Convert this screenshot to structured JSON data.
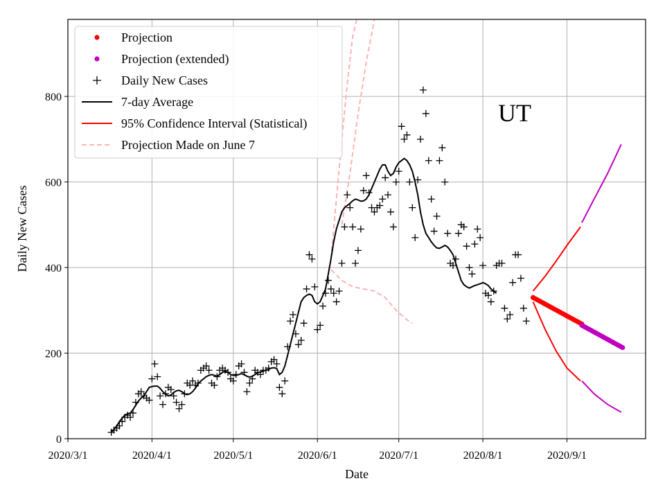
{
  "chart_data": {
    "type": "line",
    "title": "",
    "annotation": "UT",
    "xlabel": "Date",
    "ylabel": "Daily New Cases",
    "xlim_days": [
      0,
      213
    ],
    "ylim": [
      0,
      980
    ],
    "grid": true,
    "legend_position": "top-left",
    "x_ticks": [
      {
        "label": "2020/3/1",
        "day": 0
      },
      {
        "label": "2020/4/1",
        "day": 31
      },
      {
        "label": "2020/5/1",
        "day": 61
      },
      {
        "label": "2020/6/1",
        "day": 92
      },
      {
        "label": "2020/7/1",
        "day": 122
      },
      {
        "label": "2020/8/1",
        "day": 153
      },
      {
        "label": "2020/9/1",
        "day": 184
      }
    ],
    "y_ticks": [
      0,
      200,
      400,
      600,
      800
    ],
    "legend": [
      {
        "label": "Projection",
        "kind": "dot",
        "color": "#ff0000"
      },
      {
        "label": "Projection (extended)",
        "kind": "dot",
        "color": "#bf00bf"
      },
      {
        "label": "Daily New Cases",
        "kind": "plus",
        "color": "#000000"
      },
      {
        "label": "7-day Average",
        "kind": "line",
        "color": "#000000"
      },
      {
        "label": "95% Confidence Interval (Statistical)",
        "kind": "line",
        "color": "#ff0000"
      },
      {
        "label": "Projection Made on June 7",
        "kind": "dashed",
        "color": "#ffb3b3"
      }
    ],
    "daily_new_cases": {
      "start_day": 16,
      "values": [
        15,
        20,
        25,
        30,
        40,
        50,
        55,
        50,
        60,
        85,
        105,
        110,
        100,
        95,
        90,
        140,
        175,
        145,
        100,
        80,
        105,
        120,
        115,
        100,
        85,
        70,
        80,
        105,
        130,
        125,
        135,
        125,
        130,
        160,
        165,
        170,
        160,
        130,
        125,
        145,
        160,
        165,
        160,
        155,
        140,
        135,
        150,
        170,
        175,
        155,
        110,
        130,
        140,
        160,
        155,
        150,
        160,
        160,
        165,
        180,
        185,
        175,
        120,
        105,
        135,
        215,
        275,
        290,
        245,
        220,
        230,
        270,
        350,
        430,
        420,
        355,
        255,
        265,
        310,
        340,
        370,
        350,
        340,
        320,
        345,
        410,
        495,
        570,
        540,
        495,
        410,
        440,
        490,
        580,
        615,
        575,
        540,
        530,
        540,
        545,
        560,
        610,
        570,
        530,
        495,
        600,
        625,
        730,
        700,
        710,
        600,
        540,
        470,
        605,
        700,
        815,
        760,
        650,
        560,
        485,
        520,
        650,
        680,
        600,
        480,
        410,
        405,
        420,
        480,
        500,
        495,
        450,
        400,
        385,
        455,
        490,
        470,
        405,
        340,
        335,
        320,
        345,
        405,
        410,
        410,
        305,
        280,
        290,
        365,
        430,
        430,
        375,
        305,
        275
      ]
    },
    "seven_day_average": {
      "start_day": 16,
      "values": [
        15,
        22,
        30,
        40,
        48,
        55,
        58,
        60,
        68,
        78,
        88,
        95,
        100,
        110,
        120,
        122,
        123,
        123,
        118,
        110,
        104,
        100,
        102,
        108,
        112,
        113,
        110,
        105,
        103,
        105,
        110,
        118,
        128,
        135,
        140,
        145,
        148,
        150,
        148,
        146,
        150,
        155,
        158,
        155,
        150,
        148,
        148,
        150,
        152,
        150,
        146,
        144,
        146,
        150,
        154,
        156,
        158,
        160,
        162,
        165,
        166,
        164,
        150,
        155,
        170,
        195,
        220,
        245,
        270,
        295,
        320,
        330,
        335,
        338,
        335,
        320,
        315,
        320,
        335,
        350,
        385,
        420,
        460,
        490,
        510,
        530,
        540,
        545,
        550,
        556,
        560,
        558,
        555,
        556,
        560,
        570,
        585,
        600,
        615,
        630,
        640,
        640,
        625,
        615,
        620,
        635,
        645,
        650,
        655,
        650,
        640,
        625,
        600,
        570,
        530,
        500,
        480,
        470,
        460,
        452,
        446,
        445,
        448,
        452,
        448,
        440,
        430,
        410,
        390,
        370,
        360,
        355,
        352,
        355,
        358,
        360,
        362,
        365,
        362,
        358,
        350,
        345,
        340
      ]
    },
    "projection": {
      "start_day": 171.5,
      "end_day": 189.5,
      "start_value": 330,
      "end_value": 268,
      "color": "#ff0000"
    },
    "projection_extended": {
      "start_day": 189.5,
      "end_day": 204.5,
      "start_value": 265,
      "end_value": 213,
      "color": "#bf00bf"
    },
    "confidence_interval": {
      "upper": {
        "days": [
          171.5,
          176,
          180,
          184,
          189
        ],
        "values": [
          345,
          380,
          415,
          452,
          495
        ]
      },
      "lower": {
        "days": [
          171.5,
          176,
          180,
          184,
          189
        ],
        "values": [
          320,
          255,
          205,
          165,
          135
        ]
      },
      "color": "#ff0000"
    },
    "confidence_interval_extended": {
      "upper": {
        "days": [
          189.5,
          194,
          199,
          204
        ],
        "values": [
          505,
          560,
          620,
          688
        ]
      },
      "lower": {
        "days": [
          189.5,
          194,
          199,
          204
        ],
        "values": [
          135,
          105,
          80,
          62
        ]
      },
      "color": "#bf00bf"
    },
    "projection_june7": {
      "upper": {
        "days": [
          97,
          99,
          101,
          103,
          105,
          106.5
        ],
        "values": [
          420,
          560,
          700,
          830,
          940,
          980
        ]
      },
      "upper_outer": {
        "days": [
          101,
          104,
          107,
          110,
          113
        ],
        "values": [
          500,
          620,
          760,
          880,
          980
        ]
      },
      "lower": {
        "days": [
          97,
          101,
          105,
          109,
          113,
          117,
          121,
          125,
          127
        ],
        "values": [
          395,
          370,
          355,
          350,
          345,
          330,
          300,
          278,
          270
        ]
      },
      "color": "#ffb3b3"
    }
  }
}
